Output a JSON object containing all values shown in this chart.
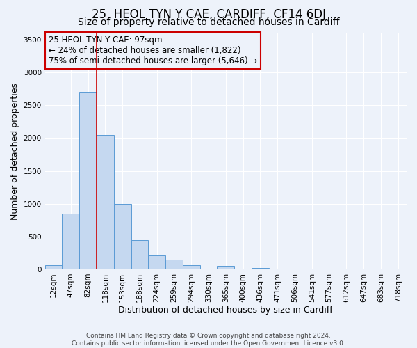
{
  "title": "25, HEOL TYN Y CAE, CARDIFF, CF14 6DJ",
  "subtitle": "Size of property relative to detached houses in Cardiff",
  "xlabel": "Distribution of detached houses by size in Cardiff",
  "ylabel": "Number of detached properties",
  "footer_line1": "Contains HM Land Registry data © Crown copyright and database right 2024.",
  "footer_line2": "Contains public sector information licensed under the Open Government Licence v3.0.",
  "bin_labels": [
    "12sqm",
    "47sqm",
    "82sqm",
    "118sqm",
    "153sqm",
    "188sqm",
    "224sqm",
    "259sqm",
    "294sqm",
    "330sqm",
    "365sqm",
    "400sqm",
    "436sqm",
    "471sqm",
    "506sqm",
    "541sqm",
    "577sqm",
    "612sqm",
    "647sqm",
    "683sqm",
    "718sqm"
  ],
  "bar_values": [
    60,
    850,
    2700,
    2050,
    1000,
    450,
    210,
    150,
    60,
    0,
    50,
    0,
    25,
    0,
    0,
    0,
    0,
    0,
    0,
    0,
    0
  ],
  "bar_color": "#c5d8f0",
  "bar_edge_color": "#5b9bd5",
  "annotation_line1": "25 HEOL TYN Y CAE: 97sqm",
  "annotation_line2": "← 24% of detached houses are smaller (1,822)",
  "annotation_line3": "75% of semi-detached houses are larger (5,646) →",
  "annotation_box_edge_color": "#cc0000",
  "vline_x": 2.5,
  "vline_color": "#cc0000",
  "ylim_max": 3600,
  "yticks": [
    0,
    500,
    1000,
    1500,
    2000,
    2500,
    3000,
    3500
  ],
  "bg_color": "#edf2fa",
  "grid_color": "#ffffff",
  "title_fontsize": 12,
  "subtitle_fontsize": 10,
  "axis_label_fontsize": 9,
  "tick_label_fontsize": 7.5,
  "annotation_fontsize": 8.5,
  "footer_fontsize": 6.5
}
